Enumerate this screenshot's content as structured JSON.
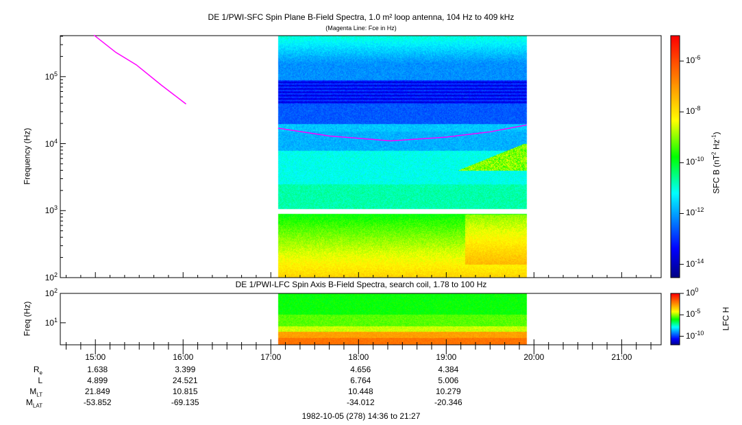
{
  "chart_data": [
    {
      "type": "heatmap",
      "title": "DE 1/PWI-SFC  Spin Plane B-Field Spectra, 1.0 m² loop antenna, 104 Hz to 409 kHz",
      "subtitle": "(Magenta Line: Fce in Hz)",
      "ylabel": "Frequency (Hz)",
      "yscale": "log",
      "ylim": [
        100,
        409000
      ],
      "yticks": [
        {
          "b": "10",
          "e": "2",
          "v": 100
        },
        {
          "b": "10",
          "e": "3",
          "v": 1000
        },
        {
          "b": "10",
          "e": "4",
          "v": 10000
        },
        {
          "b": "10",
          "e": "5",
          "v": 100000
        }
      ],
      "data_time_range": [
        "17:05",
        "19:55"
      ],
      "colorbar": {
        "label": "SFC B (nT",
        "label_sup": "2",
        "label_mid": " Hz",
        "label_sup2": "-1",
        "label_end": ")",
        "range": [
          3e-15,
          1e-05
        ],
        "ticks": [
          {
            "b": "10",
            "e": "-6",
            "v": 1e-06
          },
          {
            "b": "10",
            "e": "-8",
            "v": 1e-08
          },
          {
            "b": "10",
            "e": "-10",
            "v": 1e-10
          },
          {
            "b": "10",
            "e": "-12",
            "v": 1e-12
          },
          {
            "b": "10",
            "e": "-14",
            "v": 1e-14
          }
        ]
      },
      "fce_line": {
        "name": "Fce",
        "color": "#ff00ff",
        "segments": [
          [
            [
              "14:59",
              417000
            ],
            [
              "15:14",
              230000
            ],
            [
              "15:28",
              150000
            ],
            [
              "15:45",
              75000
            ],
            [
              "16:02",
              39000
            ]
          ],
          [
            [
              "17:05",
              17000
            ],
            [
              "17:40",
              13000
            ],
            [
              "18:22",
              11000
            ],
            [
              "19:00",
              12500
            ],
            [
              "19:30",
              15000
            ],
            [
              "19:55",
              19000
            ]
          ]
        ]
      }
    },
    {
      "type": "heatmap",
      "title": "DE 1/PWI-LFC  Spin Axis B-Field Spectra, search coil, 1.78 to 100 Hz",
      "ylabel": "Freq (Hz)",
      "yscale": "log",
      "ylim": [
        1.78,
        100
      ],
      "yticks": [
        {
          "b": "10",
          "e": "1",
          "v": 10
        },
        {
          "b": "10",
          "e": "2",
          "v": 100
        }
      ],
      "data_time_range": [
        "17:05",
        "19:55"
      ],
      "colorbar": {
        "label": "LFC H",
        "range": [
          1e-12,
          1
        ],
        "ticks": [
          {
            "b": "10",
            "e": "0",
            "v": 1
          },
          {
            "b": "10",
            "e": "-5",
            "v": 1e-05
          },
          {
            "b": "10",
            "e": "-10",
            "v": 1e-10
          }
        ]
      }
    }
  ],
  "xaxis": {
    "start": "14:36",
    "end": "21:27",
    "ticks": [
      "15:00",
      "16:00",
      "17:00",
      "18:00",
      "19:00",
      "20:00",
      "21:00"
    ]
  },
  "ephemeris": {
    "rows": [
      {
        "label": "R",
        "sub": "e",
        "values": [
          "1.638",
          "3.399",
          "",
          "4.656",
          "4.384"
        ]
      },
      {
        "label": "L",
        "sub": "",
        "values": [
          "4.899",
          "24.521",
          "",
          "6.764",
          "5.006"
        ]
      },
      {
        "label": "M",
        "sub": "LT",
        "values": [
          "21.849",
          "10.815",
          "",
          "10.448",
          "10.279"
        ]
      },
      {
        "label": "M",
        "sub": "LAT",
        "values": [
          "-53.852",
          "-69.135",
          "",
          "-34.012",
          "-20.346"
        ]
      }
    ],
    "footer": "1982-10-05 (278) 14:36 to 21:27"
  }
}
